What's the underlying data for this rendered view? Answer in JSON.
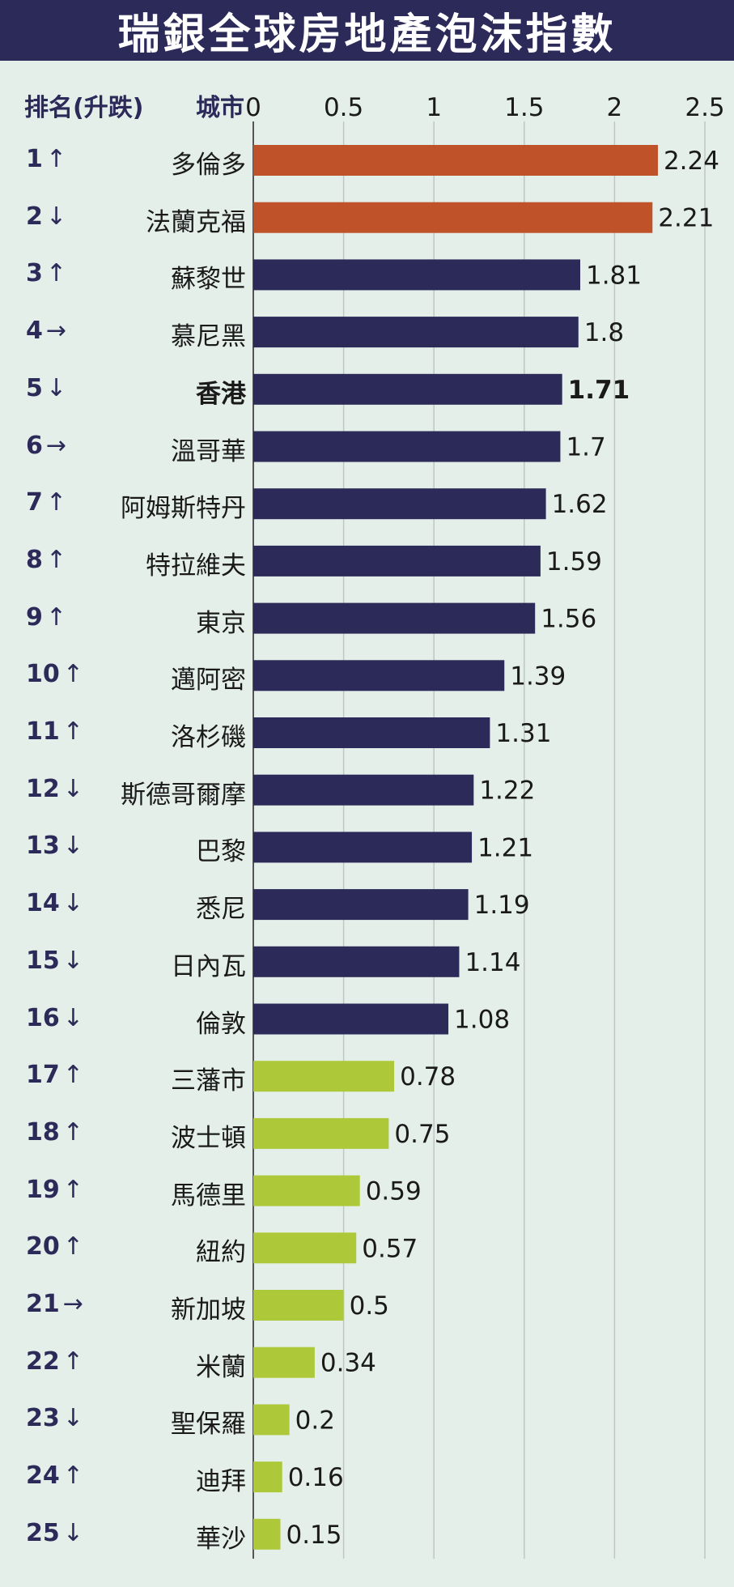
{
  "title": "瑞銀全球房地產泡沫指數",
  "header": {
    "rank_label": "排名(升跌)",
    "city_label": "城市"
  },
  "colors": {
    "title_bg": "#2c2a58",
    "background": "#e5efea",
    "top": "#c0522a",
    "middle": "#2c2a58",
    "low": "#adc93a",
    "grid": "#bfc6c3"
  },
  "chart_data": {
    "type": "bar",
    "orientation": "horizontal",
    "title": "瑞銀全球房地產泡沫指數",
    "xlim": [
      0,
      2.5
    ],
    "xticks": [
      "0",
      "0.5",
      "1",
      "1.5",
      "2",
      "2.5"
    ],
    "tick_values": [
      0,
      0.5,
      1,
      1.5,
      2,
      2.5
    ],
    "grid": true,
    "categories": [
      "多倫多",
      "法蘭克福",
      "蘇黎世",
      "慕尼黑",
      "香港",
      "溫哥華",
      "阿姆斯特丹",
      "特拉維夫",
      "東京",
      "邁阿密",
      "洛杉磯",
      "斯德哥爾摩",
      "巴黎",
      "悉尼",
      "日內瓦",
      "倫敦",
      "三藩市",
      "波士頓",
      "馬德里",
      "紐約",
      "新加坡",
      "米蘭",
      "聖保羅",
      "迪拜",
      "華沙"
    ],
    "ranks": [
      "1",
      "2",
      "3",
      "4",
      "5",
      "6",
      "7",
      "8",
      "9",
      "10",
      "11",
      "12",
      "13",
      "14",
      "15",
      "16",
      "17",
      "18",
      "19",
      "20",
      "21",
      "22",
      "23",
      "24",
      "25"
    ],
    "changes": [
      "↑",
      "↓",
      "↑",
      "→",
      "↓",
      "→",
      "↑",
      "↑",
      "↑",
      "↑",
      "↑",
      "↓",
      "↓",
      "↓",
      "↓",
      "↓",
      "↑",
      "↑",
      "↑",
      "↑",
      "→",
      "↑",
      "↓",
      "↑",
      "↓"
    ],
    "values": [
      2.24,
      2.21,
      1.81,
      1.8,
      1.71,
      1.7,
      1.62,
      1.59,
      1.56,
      1.39,
      1.31,
      1.22,
      1.21,
      1.19,
      1.14,
      1.08,
      0.78,
      0.75,
      0.59,
      0.57,
      0.5,
      0.34,
      0.2,
      0.16,
      0.15
    ],
    "value_labels": [
      "2.24",
      "2.21",
      "1.81",
      "1.8",
      "1.71",
      "1.7",
      "1.62",
      "1.59",
      "1.56",
      "1.39",
      "1.31",
      "1.22",
      "1.21",
      "1.19",
      "1.14",
      "1.08",
      "0.78",
      "0.75",
      "0.59",
      "0.57",
      "0.5",
      "0.34",
      "0.2",
      "0.16",
      "0.15"
    ],
    "color_groups": [
      "top",
      "top",
      "middle",
      "middle",
      "middle",
      "middle",
      "middle",
      "middle",
      "middle",
      "middle",
      "middle",
      "middle",
      "middle",
      "middle",
      "middle",
      "middle",
      "low",
      "low",
      "low",
      "low",
      "low",
      "low",
      "low",
      "low",
      "low"
    ],
    "highlight": "香港"
  }
}
